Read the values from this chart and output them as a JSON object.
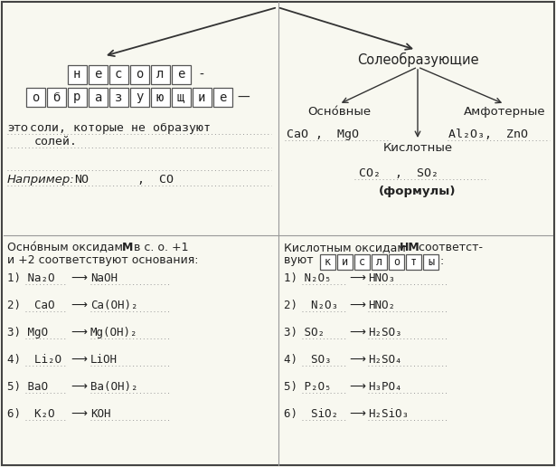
{
  "bg_color": "#f8f8f0",
  "border_color": "#444444",
  "text_color": "#222222",
  "boxed_word1": [
    "н",
    "е",
    "с",
    "о",
    "л",
    "е",
    "-"
  ],
  "boxed_word2": [
    "о",
    "б",
    "р",
    "а",
    "з",
    "у",
    "ю",
    "щ",
    "и",
    "е",
    "—"
  ],
  "boxed_kislo": [
    "к",
    "и",
    "с",
    "л",
    "o",
    "т",
    "ы"
  ],
  "left_reactions": [
    [
      "1) Na₂O",
      "NaOH"
    ],
    [
      "2)  CaO",
      "Ca(OH)₂"
    ],
    [
      "3) MgO",
      "Mg(OH)₂"
    ],
    [
      "4)  Li₂O",
      "LiOH"
    ],
    [
      "5) BaO",
      "Ba(OH)₂"
    ],
    [
      "6)  K₂O",
      "KOH"
    ]
  ],
  "right_reactions": [
    [
      "1) N₂O₅",
      "HNO₃"
    ],
    [
      "2)  N₂O₃",
      "HNO₂"
    ],
    [
      "3) SO₂",
      "H₂SO₃"
    ],
    [
      "4)  SO₃",
      "H₂SO₄"
    ],
    [
      "5) P₂O₅",
      "H₃PO₄"
    ],
    [
      "6)  SiO₂",
      "H₂SiO₃"
    ]
  ]
}
